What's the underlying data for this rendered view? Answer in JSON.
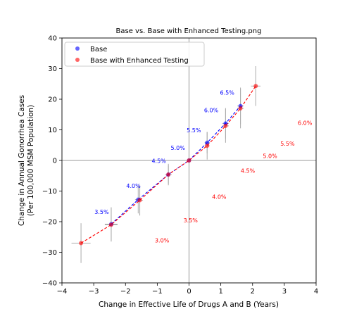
{
  "chart_data": {
    "type": "scatter",
    "title": "Base vs. Base with Enhanced Testing.png",
    "xlabel": "Change in Effective Life of Drugs A and B (Years)",
    "ylabel_line1": "Change in Annual Gonorrhea Cases",
    "ylabel_line2": "(Per 100,000 MSM Population)",
    "xlim": [
      -4,
      4
    ],
    "ylim": [
      -40,
      40
    ],
    "xticks": [
      -4,
      -3,
      -2,
      -1,
      0,
      1,
      2,
      3,
      4
    ],
    "yticks": [
      -40,
      -30,
      -20,
      -10,
      0,
      10,
      20,
      30,
      40
    ],
    "legend_position": "upper-left",
    "series": [
      {
        "name": "Base",
        "color": "#0000ff",
        "points": [
          {
            "x": -2.45,
            "y": -20.8,
            "xerr": 0.2,
            "yerr": 5.5
          },
          {
            "x": -1.6,
            "y": -12.8,
            "xerr": 0.1,
            "yerr": 4.5
          },
          {
            "x": -0.65,
            "y": -4.6,
            "xerr": 0.1,
            "yerr": 3.0
          },
          {
            "x": 0.0,
            "y": 0.0,
            "xerr": 0.05,
            "yerr": 0.5
          },
          {
            "x": 0.57,
            "y": 5.8,
            "xerr": 0.08,
            "yerr": 3.5
          },
          {
            "x": 1.15,
            "y": 12.1,
            "xerr": 0.1,
            "yerr": 5.0
          },
          {
            "x": 1.62,
            "y": 17.8,
            "xerr": 0.1,
            "yerr": 6.0
          }
        ],
        "labels": [
          {
            "x": -2.75,
            "y": -17.5,
            "text": "3.5%"
          },
          {
            "x": -1.75,
            "y": -9.0,
            "text": "4.0%"
          },
          {
            "x": -0.95,
            "y": -0.8,
            "text": "4.5%"
          },
          {
            "x": -0.35,
            "y": 3.5,
            "text": "5.0%"
          },
          {
            "x": 0.15,
            "y": 9.2,
            "text": "5.5%"
          },
          {
            "x": 0.7,
            "y": 15.8,
            "text": "6.0%"
          },
          {
            "x": 1.2,
            "y": 21.5,
            "text": "6.5%"
          }
        ]
      },
      {
        "name": "Base with Enhanced Testing",
        "color": "#ff0000",
        "points": [
          {
            "x": -3.4,
            "y": -27.0,
            "xerr": 0.3,
            "yerr": 6.5
          },
          {
            "x": -2.45,
            "y": -21.0,
            "xerr": 0.2,
            "yerr": 5.5
          },
          {
            "x": -1.55,
            "y": -13.0,
            "xerr": 0.1,
            "yerr": 5.0
          },
          {
            "x": -0.65,
            "y": -4.6,
            "xerr": 0.1,
            "yerr": 3.5
          },
          {
            "x": 0.0,
            "y": 0.0,
            "xerr": 0.05,
            "yerr": 0.5
          },
          {
            "x": 0.57,
            "y": 4.8,
            "xerr": 0.08,
            "yerr": 4.5
          },
          {
            "x": 1.15,
            "y": 11.3,
            "xerr": 0.1,
            "yerr": 5.5
          },
          {
            "x": 1.62,
            "y": 17.0,
            "xerr": 0.1,
            "yerr": 6.5
          },
          {
            "x": 2.1,
            "y": 24.3,
            "xerr": 0.15,
            "yerr": 6.5
          }
        ],
        "labels": [
          {
            "x": -0.85,
            "y": -26.8,
            "text": "3.0%"
          },
          {
            "x": 0.05,
            "y": -20.2,
            "text": "3.5%"
          },
          {
            "x": 0.95,
            "y": -12.5,
            "text": "4.0%"
          },
          {
            "x": 1.85,
            "y": -4.0,
            "text": "4.5%"
          },
          {
            "x": 2.55,
            "y": 0.8,
            "text": "5.0%"
          },
          {
            "x": 3.1,
            "y": 4.8,
            "text": "5.5%"
          },
          {
            "x": 3.65,
            "y": 11.6,
            "text": "6.0%"
          }
        ]
      }
    ]
  }
}
